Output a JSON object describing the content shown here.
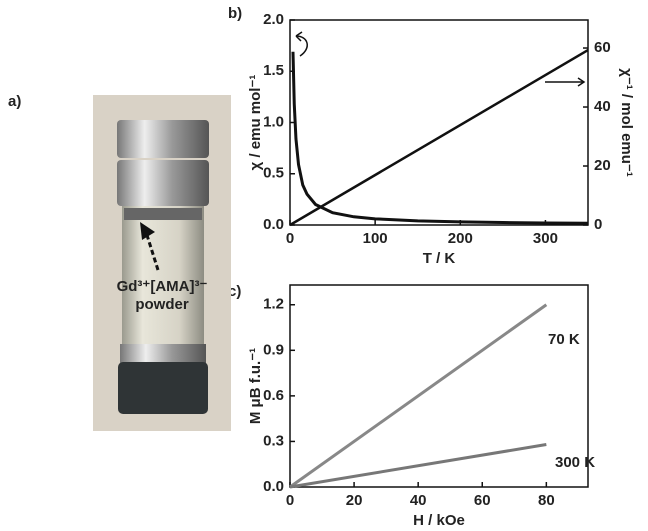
{
  "panel_labels": [
    "a)",
    "b)",
    "c)"
  ],
  "photo": {
    "annotation": [
      "Gd³⁺[AMA]³⁻",
      "powder"
    ]
  },
  "chart_data": [
    {
      "type": "line",
      "xlabel": "T / K",
      "ylabel": "χ / emu mol⁻¹",
      "y2label": "χ⁻¹ / mol emu⁻¹",
      "xlim": [
        0,
        350
      ],
      "xticks": [
        0,
        100,
        200,
        300
      ],
      "ylim": [
        0,
        2
      ],
      "yticks": [
        {
          "value": 0,
          "label": "0.0"
        },
        {
          "value": 0.5,
          "label": "0.5"
        },
        {
          "value": 1,
          "label": "1.0"
        },
        {
          "value": 1.5,
          "label": "1.5"
        },
        {
          "value": 2,
          "label": "2.0"
        }
      ],
      "y2lim": [
        0,
        69.5
      ],
      "y2ticks": [
        0,
        20,
        40,
        60
      ],
      "series": [
        {
          "color": "#111111",
          "x": [
            3.5,
            5,
            7,
            10,
            15,
            20,
            30,
            50,
            75,
            100,
            150,
            200,
            250,
            300,
            350
          ],
          "values": [
            1.69,
            1.18,
            0.84,
            0.59,
            0.39,
            0.3,
            0.2,
            0.12,
            0.08,
            0.06,
            0.04,
            0.03,
            0.024,
            0.02,
            0.017
          ]
        },
        {
          "color": "#111111",
          "axis": "y2",
          "x": [
            0,
            350
          ],
          "values": [
            0,
            59.3
          ]
        }
      ]
    },
    {
      "type": "line",
      "xlabel": "H / kOe",
      "ylabel": "M μB f.u.⁻¹",
      "xlim": [
        0,
        93
      ],
      "xticks": [
        0,
        20,
        40,
        60,
        80
      ],
      "ylim": [
        0,
        1.33
      ],
      "yticks": [
        {
          "value": 0,
          "label": "0.0"
        },
        {
          "value": 0.3,
          "label": "0.3"
        },
        {
          "value": 0.6,
          "label": "0.6"
        },
        {
          "value": 0.9,
          "label": "0.9"
        },
        {
          "value": 1.2,
          "label": "1.2"
        }
      ],
      "series": [
        {
          "name": "70 K",
          "color": "#888888",
          "x": [
            0,
            80
          ],
          "values": [
            0,
            1.2
          ]
        },
        {
          "name": "300 K",
          "color": "#777777",
          "x": [
            0,
            80
          ],
          "values": [
            0,
            0.28
          ]
        }
      ]
    }
  ]
}
